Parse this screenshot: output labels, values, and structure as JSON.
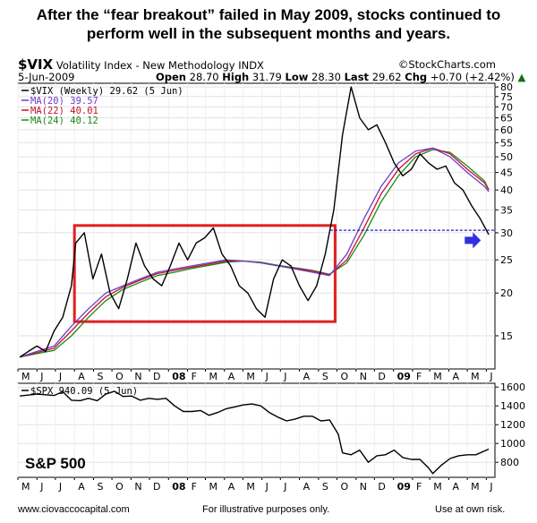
{
  "headline": {
    "line1": "After the “fear breakout” failed in May 2009, stocks continued to",
    "line2": "perform well in the subsequent months and years."
  },
  "header": {
    "symbol": "$VIX",
    "description": "Volatility Index - New Methodology",
    "exchange": "INDX",
    "source": "©StockCharts.com",
    "date": "5-Jun-2009",
    "open_label": "Open",
    "open": "28.70",
    "high_label": "High",
    "high": "31.79",
    "low_label": "Low",
    "low": "28.30",
    "last_label": "Last",
    "last": "29.62",
    "chg_label": "Chg",
    "chg": "+0.70 (+2.42%)",
    "chg_arrow": "▲"
  },
  "footer": {
    "left": "www.ciovaccocapital.com",
    "center": "For illustrative purposes only.",
    "right": "Use at own risk."
  },
  "chart_data": [
    {
      "type": "line",
      "scale": "log",
      "ylim": [
        12,
        82
      ],
      "yticks": [
        15,
        20,
        25,
        30,
        35,
        40,
        45,
        50,
        55,
        60,
        65,
        70,
        75,
        80
      ],
      "x_ticks": [
        "M",
        "J",
        "J",
        "A",
        "S",
        "O",
        "N",
        "D",
        "08",
        "F",
        "M",
        "A",
        "M",
        "J",
        "J",
        "A",
        "S",
        "O",
        "N",
        "D",
        "09",
        "F",
        "M",
        "A",
        "M",
        "J"
      ],
      "bold_ticks": [
        "08",
        "09"
      ],
      "x_range": [
        "2007-05-01",
        "2009-06-15"
      ],
      "legend": [
        {
          "key": "vix",
          "label": "$VIX (Weekly) 29.62 (5 Jun)",
          "color": "#000000"
        },
        {
          "key": "ma20",
          "label": "MA(20) 39.57",
          "color": "#6d3cc8"
        },
        {
          "key": "ma22",
          "label": "MA(22) 40.01",
          "color": "#c8102e"
        },
        {
          "key": "ma24",
          "label": "MA(24) 40.12",
          "color": "#1a8a1a"
        }
      ],
      "series": [
        {
          "key": "vix",
          "name": "$VIX (Weekly)",
          "x": [
            "2007-05-04",
            "2007-05-18",
            "2007-06-01",
            "2007-06-15",
            "2007-06-29",
            "2007-07-13",
            "2007-07-27",
            "2007-08-03",
            "2007-08-17",
            "2007-08-31",
            "2007-09-14",
            "2007-09-28",
            "2007-10-12",
            "2007-10-26",
            "2007-11-09",
            "2007-11-23",
            "2007-12-07",
            "2007-12-21",
            "2008-01-04",
            "2008-01-18",
            "2008-02-01",
            "2008-02-15",
            "2008-02-29",
            "2008-03-14",
            "2008-03-28",
            "2008-04-11",
            "2008-04-25",
            "2008-05-09",
            "2008-05-23",
            "2008-06-06",
            "2008-06-20",
            "2008-07-04",
            "2008-07-18",
            "2008-08-01",
            "2008-08-15",
            "2008-08-29",
            "2008-09-12",
            "2008-09-26",
            "2008-10-10",
            "2008-10-24",
            "2008-11-07",
            "2008-11-21",
            "2008-12-05",
            "2008-12-19",
            "2009-01-02",
            "2009-01-16",
            "2009-01-30",
            "2009-02-13",
            "2009-02-27",
            "2009-03-13",
            "2009-03-27",
            "2009-04-10",
            "2009-04-24",
            "2009-05-08",
            "2009-05-22",
            "2009-06-05"
          ],
          "values": [
            13,
            13.5,
            14,
            13.5,
            15.5,
            17,
            21,
            28,
            30,
            22,
            26,
            20,
            18,
            22,
            28,
            24,
            22,
            21,
            24,
            28,
            25,
            28,
            29,
            31,
            26,
            24,
            21,
            20,
            18,
            17,
            22,
            25,
            24,
            21,
            19,
            21,
            26,
            35,
            58,
            80,
            65,
            60,
            62,
            55,
            48,
            44,
            46,
            51,
            48,
            46,
            47,
            42,
            40,
            36,
            33,
            29.62
          ]
        },
        {
          "key": "ma20",
          "name": "MA(20)",
          "x": [
            "2007-05-04",
            "2007-06-01",
            "2007-06-29",
            "2007-07-27",
            "2007-08-24",
            "2007-09-21",
            "2007-10-19",
            "2007-11-16",
            "2007-12-14",
            "2008-01-11",
            "2008-02-08",
            "2008-03-07",
            "2008-04-04",
            "2008-05-02",
            "2008-05-30",
            "2008-06-27",
            "2008-07-25",
            "2008-08-22",
            "2008-09-19",
            "2008-10-17",
            "2008-11-14",
            "2008-12-12",
            "2009-01-09",
            "2009-02-06",
            "2009-03-06",
            "2009-04-03",
            "2009-05-01",
            "2009-05-29",
            "2009-06-05"
          ],
          "values": [
            13,
            13.5,
            14,
            16,
            18,
            20,
            21,
            22,
            23,
            23.5,
            24,
            24.5,
            25,
            24.8,
            24.5,
            24,
            23.5,
            23,
            22.5,
            26,
            33,
            41,
            48,
            52,
            53,
            50,
            45,
            41,
            39.57
          ]
        },
        {
          "key": "ma22",
          "name": "MA(22)",
          "x": [
            "2007-05-04",
            "2007-06-01",
            "2007-06-29",
            "2007-07-27",
            "2007-08-24",
            "2007-09-21",
            "2007-10-19",
            "2007-11-16",
            "2007-12-14",
            "2008-01-11",
            "2008-02-08",
            "2008-03-07",
            "2008-04-04",
            "2008-05-02",
            "2008-05-30",
            "2008-06-27",
            "2008-07-25",
            "2008-08-22",
            "2008-09-19",
            "2008-10-17",
            "2008-11-14",
            "2008-12-12",
            "2009-01-09",
            "2009-02-06",
            "2009-03-06",
            "2009-04-03",
            "2009-05-01",
            "2009-05-29",
            "2009-06-05"
          ],
          "values": [
            13,
            13.4,
            13.8,
            15.5,
            17.5,
            19.5,
            20.8,
            21.8,
            22.8,
            23.3,
            23.8,
            24.3,
            24.8,
            24.8,
            24.5,
            24,
            23.6,
            23.2,
            22.6,
            25,
            31,
            39,
            46,
            51,
            53,
            51,
            46,
            42,
            40.01
          ]
        },
        {
          "key": "ma24",
          "name": "MA(24)",
          "x": [
            "2007-05-04",
            "2007-06-01",
            "2007-06-29",
            "2007-07-27",
            "2007-08-24",
            "2007-09-21",
            "2007-10-19",
            "2007-11-16",
            "2007-12-14",
            "2008-01-11",
            "2008-02-08",
            "2008-03-07",
            "2008-04-04",
            "2008-05-02",
            "2008-05-30",
            "2008-06-27",
            "2008-07-25",
            "2008-08-22",
            "2008-09-19",
            "2008-10-17",
            "2008-11-14",
            "2008-12-12",
            "2009-01-09",
            "2009-02-06",
            "2009-03-06",
            "2009-04-03",
            "2009-05-01",
            "2009-05-29",
            "2009-06-05"
          ],
          "values": [
            13,
            13.3,
            13.6,
            15,
            17,
            19,
            20.5,
            21.5,
            22.5,
            23,
            23.6,
            24.1,
            24.6,
            24.8,
            24.6,
            24.1,
            23.7,
            23.3,
            22.7,
            24.5,
            29.5,
            37,
            44,
            50,
            52.5,
            51.5,
            47,
            42.5,
            40.12
          ]
        }
      ],
      "annotations": [
        {
          "type": "box",
          "x": [
            "2007-08-01",
            "2008-09-28"
          ],
          "y": [
            16.5,
            31.5
          ],
          "color": "#e02020"
        },
        {
          "type": "hline",
          "y": 30.5,
          "x_from": "2008-09-20",
          "style": "dashed",
          "color": "#1e1ec8"
        },
        {
          "type": "arrow",
          "direction": "right",
          "x": "2009-05-10",
          "y": 28.5,
          "color": "#3030e0"
        }
      ]
    },
    {
      "type": "line",
      "ylim": [
        640,
        1640
      ],
      "yticks": [
        800,
        1000,
        1200,
        1400,
        1600
      ],
      "x_ticks": [
        "M",
        "J",
        "J",
        "A",
        "S",
        "O",
        "N",
        "D",
        "08",
        "F",
        "M",
        "A",
        "M",
        "J",
        "J",
        "A",
        "S",
        "O",
        "N",
        "D",
        "09",
        "F",
        "M",
        "A",
        "M",
        "J"
      ],
      "bold_ticks": [
        "08",
        "09"
      ],
      "x_range": [
        "2007-05-01",
        "2009-06-15"
      ],
      "legend": [
        {
          "key": "spx",
          "label": "$SPX 940.09 (5 Jun)",
          "color": "#000000"
        }
      ],
      "label": "S&P 500",
      "series": [
        {
          "key": "spx",
          "name": "$SPX",
          "x": [
            "2007-05-04",
            "2007-06-01",
            "2007-06-29",
            "2007-07-13",
            "2007-07-27",
            "2007-08-10",
            "2007-08-24",
            "2007-09-07",
            "2007-09-21",
            "2007-10-05",
            "2007-10-19",
            "2007-11-02",
            "2007-11-16",
            "2007-11-30",
            "2007-12-14",
            "2007-12-28",
            "2008-01-11",
            "2008-01-25",
            "2008-02-08",
            "2008-02-22",
            "2008-03-07",
            "2008-03-21",
            "2008-04-04",
            "2008-04-18",
            "2008-05-02",
            "2008-05-16",
            "2008-05-30",
            "2008-06-13",
            "2008-06-27",
            "2008-07-11",
            "2008-07-25",
            "2008-08-08",
            "2008-08-22",
            "2008-09-05",
            "2008-09-19",
            "2008-10-03",
            "2008-10-10",
            "2008-10-24",
            "2008-11-07",
            "2008-11-21",
            "2008-12-05",
            "2008-12-19",
            "2009-01-02",
            "2009-01-16",
            "2009-01-30",
            "2009-02-13",
            "2009-02-27",
            "2009-03-06",
            "2009-03-20",
            "2009-04-03",
            "2009-04-17",
            "2009-05-01",
            "2009-05-15",
            "2009-06-05"
          ],
          "values": [
            1505,
            1525,
            1510,
            1550,
            1460,
            1455,
            1480,
            1455,
            1525,
            1555,
            1500,
            1505,
            1460,
            1480,
            1470,
            1480,
            1400,
            1340,
            1340,
            1350,
            1300,
            1330,
            1370,
            1390,
            1410,
            1420,
            1400,
            1330,
            1280,
            1240,
            1260,
            1290,
            1290,
            1240,
            1250,
            1100,
            900,
            880,
            930,
            800,
            870,
            880,
            930,
            850,
            830,
            830,
            740,
            680,
            770,
            840,
            870,
            880,
            880,
            940.09
          ]
        }
      ]
    }
  ]
}
